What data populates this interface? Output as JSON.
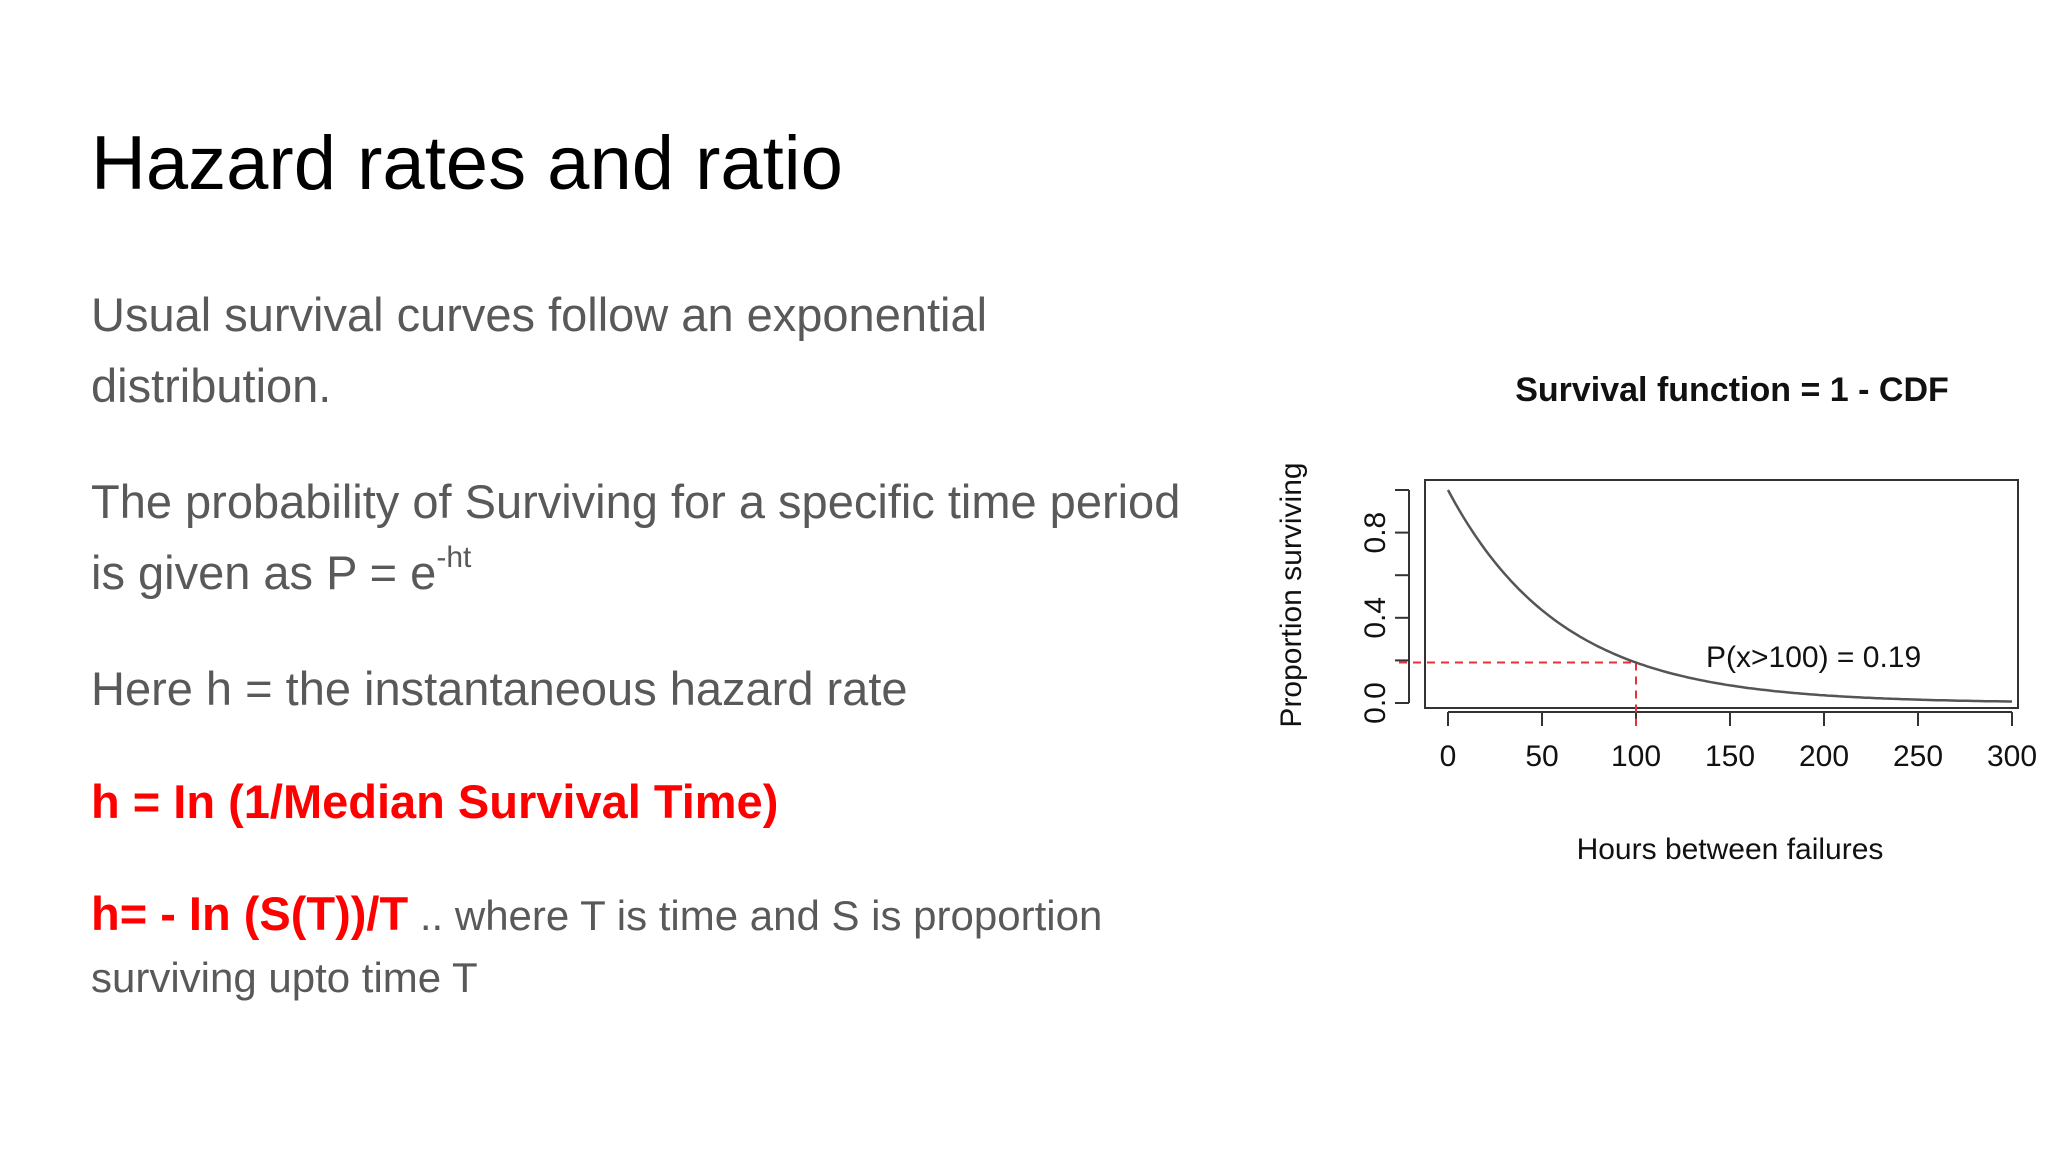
{
  "slide": {
    "title": "Hazard rates and ratio",
    "para1": "Usual survival curves follow an exponential distribution.",
    "para2_text": "The probability of Surviving for a specific time period is given as P = e",
    "para2_sup": "-ht",
    "para3": "Here h = the instantaneous hazard rate",
    "formula1": "h = In (1/Median Survival Time)",
    "formula2_bold": "h= - In (S(T))/T",
    "formula2_dots": " ..",
    "formula2_rest": " where T is time and S is proportion surviving upto time T"
  },
  "colors": {
    "title": "#000000",
    "body_text": "#595959",
    "highlight": "#ff0000",
    "curve": "#555555",
    "dashed_marker": "#e8303a"
  },
  "chart_data": {
    "type": "line",
    "title": "Survival function = 1 - CDF",
    "xlabel": "Hours between failures",
    "ylabel": "Proportion surviving",
    "xlim": [
      0,
      300
    ],
    "ylim": [
      0,
      1
    ],
    "xticks": [
      0,
      50,
      100,
      150,
      200,
      250,
      300
    ],
    "yticks": [
      0.0,
      0.4,
      0.8
    ],
    "ytick_labels": [
      "0.0",
      "0.4",
      "0.8"
    ],
    "series": [
      {
        "x": [
          0,
          10,
          20,
          30,
          40,
          50,
          60,
          70,
          80,
          90,
          100,
          120,
          140,
          160,
          180,
          200,
          220,
          240,
          260,
          280,
          300
        ],
        "y": [
          1.0,
          0.847,
          0.718,
          0.608,
          0.515,
          0.436,
          0.369,
          0.313,
          0.265,
          0.224,
          0.19,
          0.136,
          0.098,
          0.07,
          0.05,
          0.036,
          0.026,
          0.019,
          0.013,
          0.01,
          0.007
        ]
      }
    ],
    "annotation": {
      "text": "P(x>100) = 0.19",
      "x": 100,
      "y": 0.19
    }
  }
}
